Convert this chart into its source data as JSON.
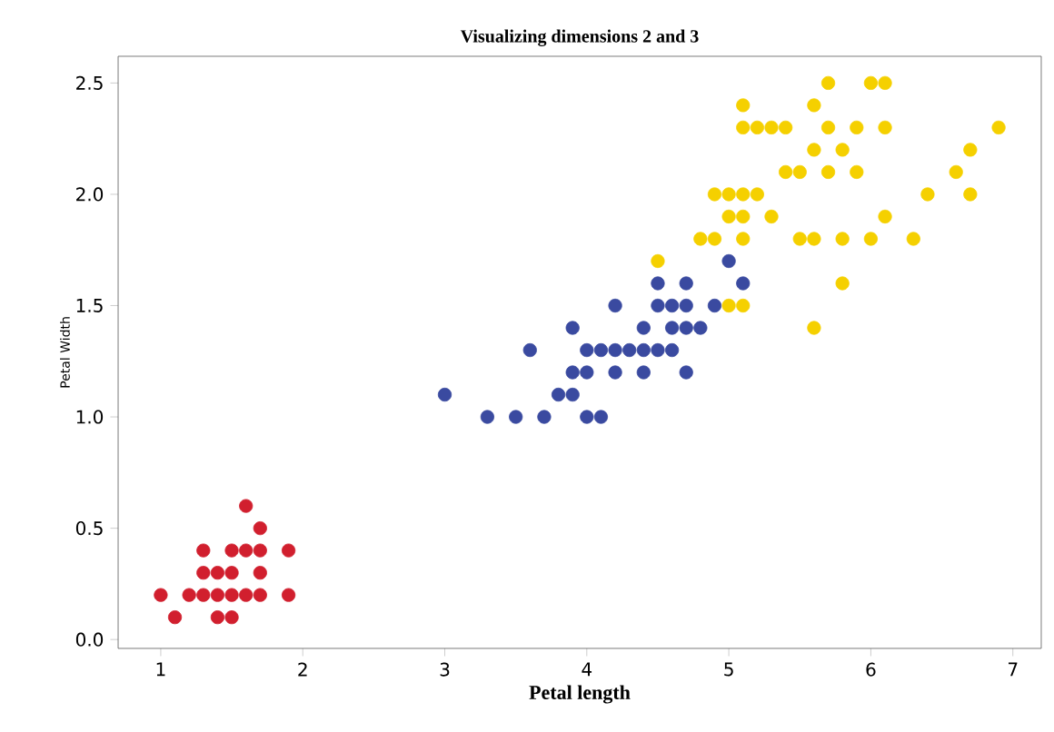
{
  "chart_data": {
    "type": "scatter",
    "title": "Visualizing dimensions 2 and 3",
    "xlabel": "Petal length",
    "ylabel": "Petal Width",
    "grid": false,
    "xlim": [
      0.7,
      7.2
    ],
    "ylim": [
      -0.04,
      2.62
    ],
    "xticks": [
      1,
      2,
      3,
      4,
      5,
      6,
      7
    ],
    "yticks": [
      {
        "value": 0,
        "label": "0.0"
      },
      {
        "value": 0.5,
        "label": "0.5"
      },
      {
        "value": 1,
        "label": "1.0"
      },
      {
        "value": 1.5,
        "label": "1.5"
      },
      {
        "value": 2,
        "label": "2.0"
      },
      {
        "value": 2.5,
        "label": "2.5"
      }
    ],
    "series": [
      {
        "color": "#d11f2e",
        "x": [
          1.4,
          1.3,
          1.5,
          1.7,
          1.4,
          1.5,
          1.6,
          1.4,
          1.1,
          1.2,
          1.5,
          1.3,
          1.7,
          1.5,
          1.7,
          1.0,
          1.7,
          1.9,
          1.6,
          1.3,
          1.6,
          1.9
        ],
        "values": [
          0.2,
          0.2,
          0.2,
          0.4,
          0.3,
          0.1,
          0.2,
          0.1,
          0.1,
          0.2,
          0.4,
          0.4,
          0.3,
          0.3,
          0.2,
          0.2,
          0.5,
          0.2,
          0.4,
          0.3,
          0.6,
          0.4
        ]
      },
      {
        "color": "#3a4aa0",
        "x": [
          4.7,
          4.5,
          4.9,
          4.0,
          4.6,
          4.5,
          4.7,
          3.3,
          4.6,
          3.9,
          3.5,
          4.2,
          4.0,
          3.6,
          4.4,
          4.1,
          3.9,
          4.7,
          4.3,
          4.8,
          5.0,
          3.8,
          3.7,
          3.9,
          5.1,
          4.5,
          4.7,
          4.4,
          4.1,
          4.4,
          4.6,
          4.0,
          4.2,
          4.2,
          3.0
        ],
        "values": [
          1.4,
          1.5,
          1.5,
          1.3,
          1.5,
          1.3,
          1.6,
          1.0,
          1.3,
          1.4,
          1.0,
          1.5,
          1.0,
          1.3,
          1.4,
          1.0,
          1.1,
          1.2,
          1.3,
          1.4,
          1.7,
          1.1,
          1.0,
          1.2,
          1.6,
          1.6,
          1.5,
          1.3,
          1.3,
          1.2,
          1.4,
          1.2,
          1.3,
          1.2,
          1.1
        ]
      },
      {
        "color": "#f5d000",
        "x": [
          6.0,
          5.1,
          5.9,
          5.6,
          5.8,
          6.6,
          4.5,
          6.3,
          5.8,
          6.1,
          5.1,
          5.3,
          5.5,
          5.0,
          5.1,
          5.3,
          5.5,
          6.7,
          6.9,
          5.0,
          5.7,
          4.9,
          6.7,
          4.9,
          5.7,
          6.0,
          4.8,
          5.8,
          6.1,
          6.4,
          5.6,
          5.1,
          5.6,
          6.1,
          5.6,
          5.4,
          5.1,
          5.9,
          5.7,
          5.2,
          5.0,
          5.2,
          5.4,
          5.1
        ],
        "values": [
          2.5,
          1.9,
          2.1,
          1.8,
          2.2,
          2.1,
          1.7,
          1.8,
          1.8,
          2.5,
          2.0,
          1.9,
          2.1,
          2.0,
          2.4,
          2.3,
          1.8,
          2.2,
          2.3,
          1.5,
          2.3,
          2.0,
          2.0,
          1.8,
          2.1,
          1.8,
          1.8,
          1.6,
          1.9,
          2.0,
          2.2,
          1.5,
          1.4,
          2.3,
          2.4,
          2.1,
          2.3,
          2.3,
          2.5,
          2.3,
          1.9,
          2.0,
          2.3,
          1.8
        ]
      }
    ]
  }
}
